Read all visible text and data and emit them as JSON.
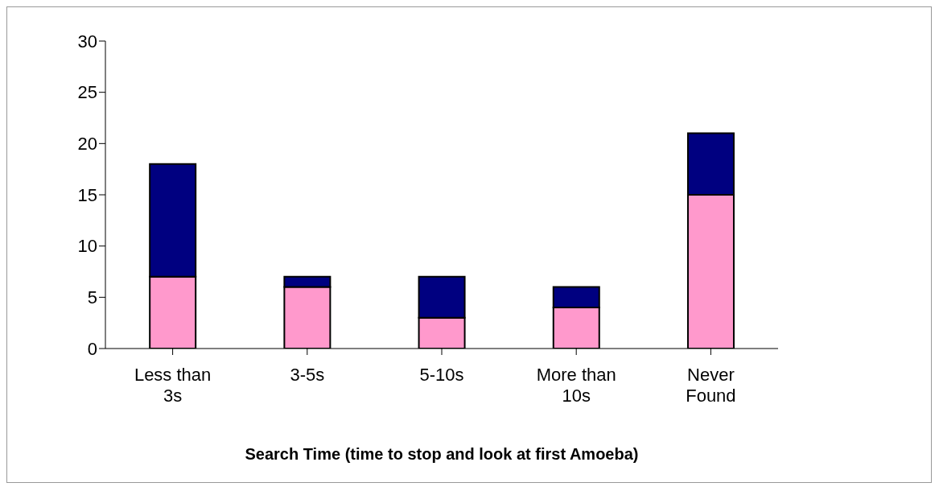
{
  "chart_data": {
    "type": "bar",
    "stacked": true,
    "xlabel": "Search Time (time to stop and look at first Amoeba)",
    "categories": [
      "Less than 3s",
      "3-5s",
      "5-10s",
      "More than 10s",
      "Never Found"
    ],
    "series": [
      {
        "color": "#ff99cc",
        "values": [
          7,
          6,
          3,
          4,
          15
        ]
      },
      {
        "color": "#000080",
        "values": [
          11,
          1,
          4,
          2,
          6
        ]
      }
    ],
    "ylim": [
      0,
      30
    ],
    "yticks": [
      0,
      5,
      10,
      15,
      20,
      25,
      30
    ],
    "grid": false,
    "legend": false
  }
}
